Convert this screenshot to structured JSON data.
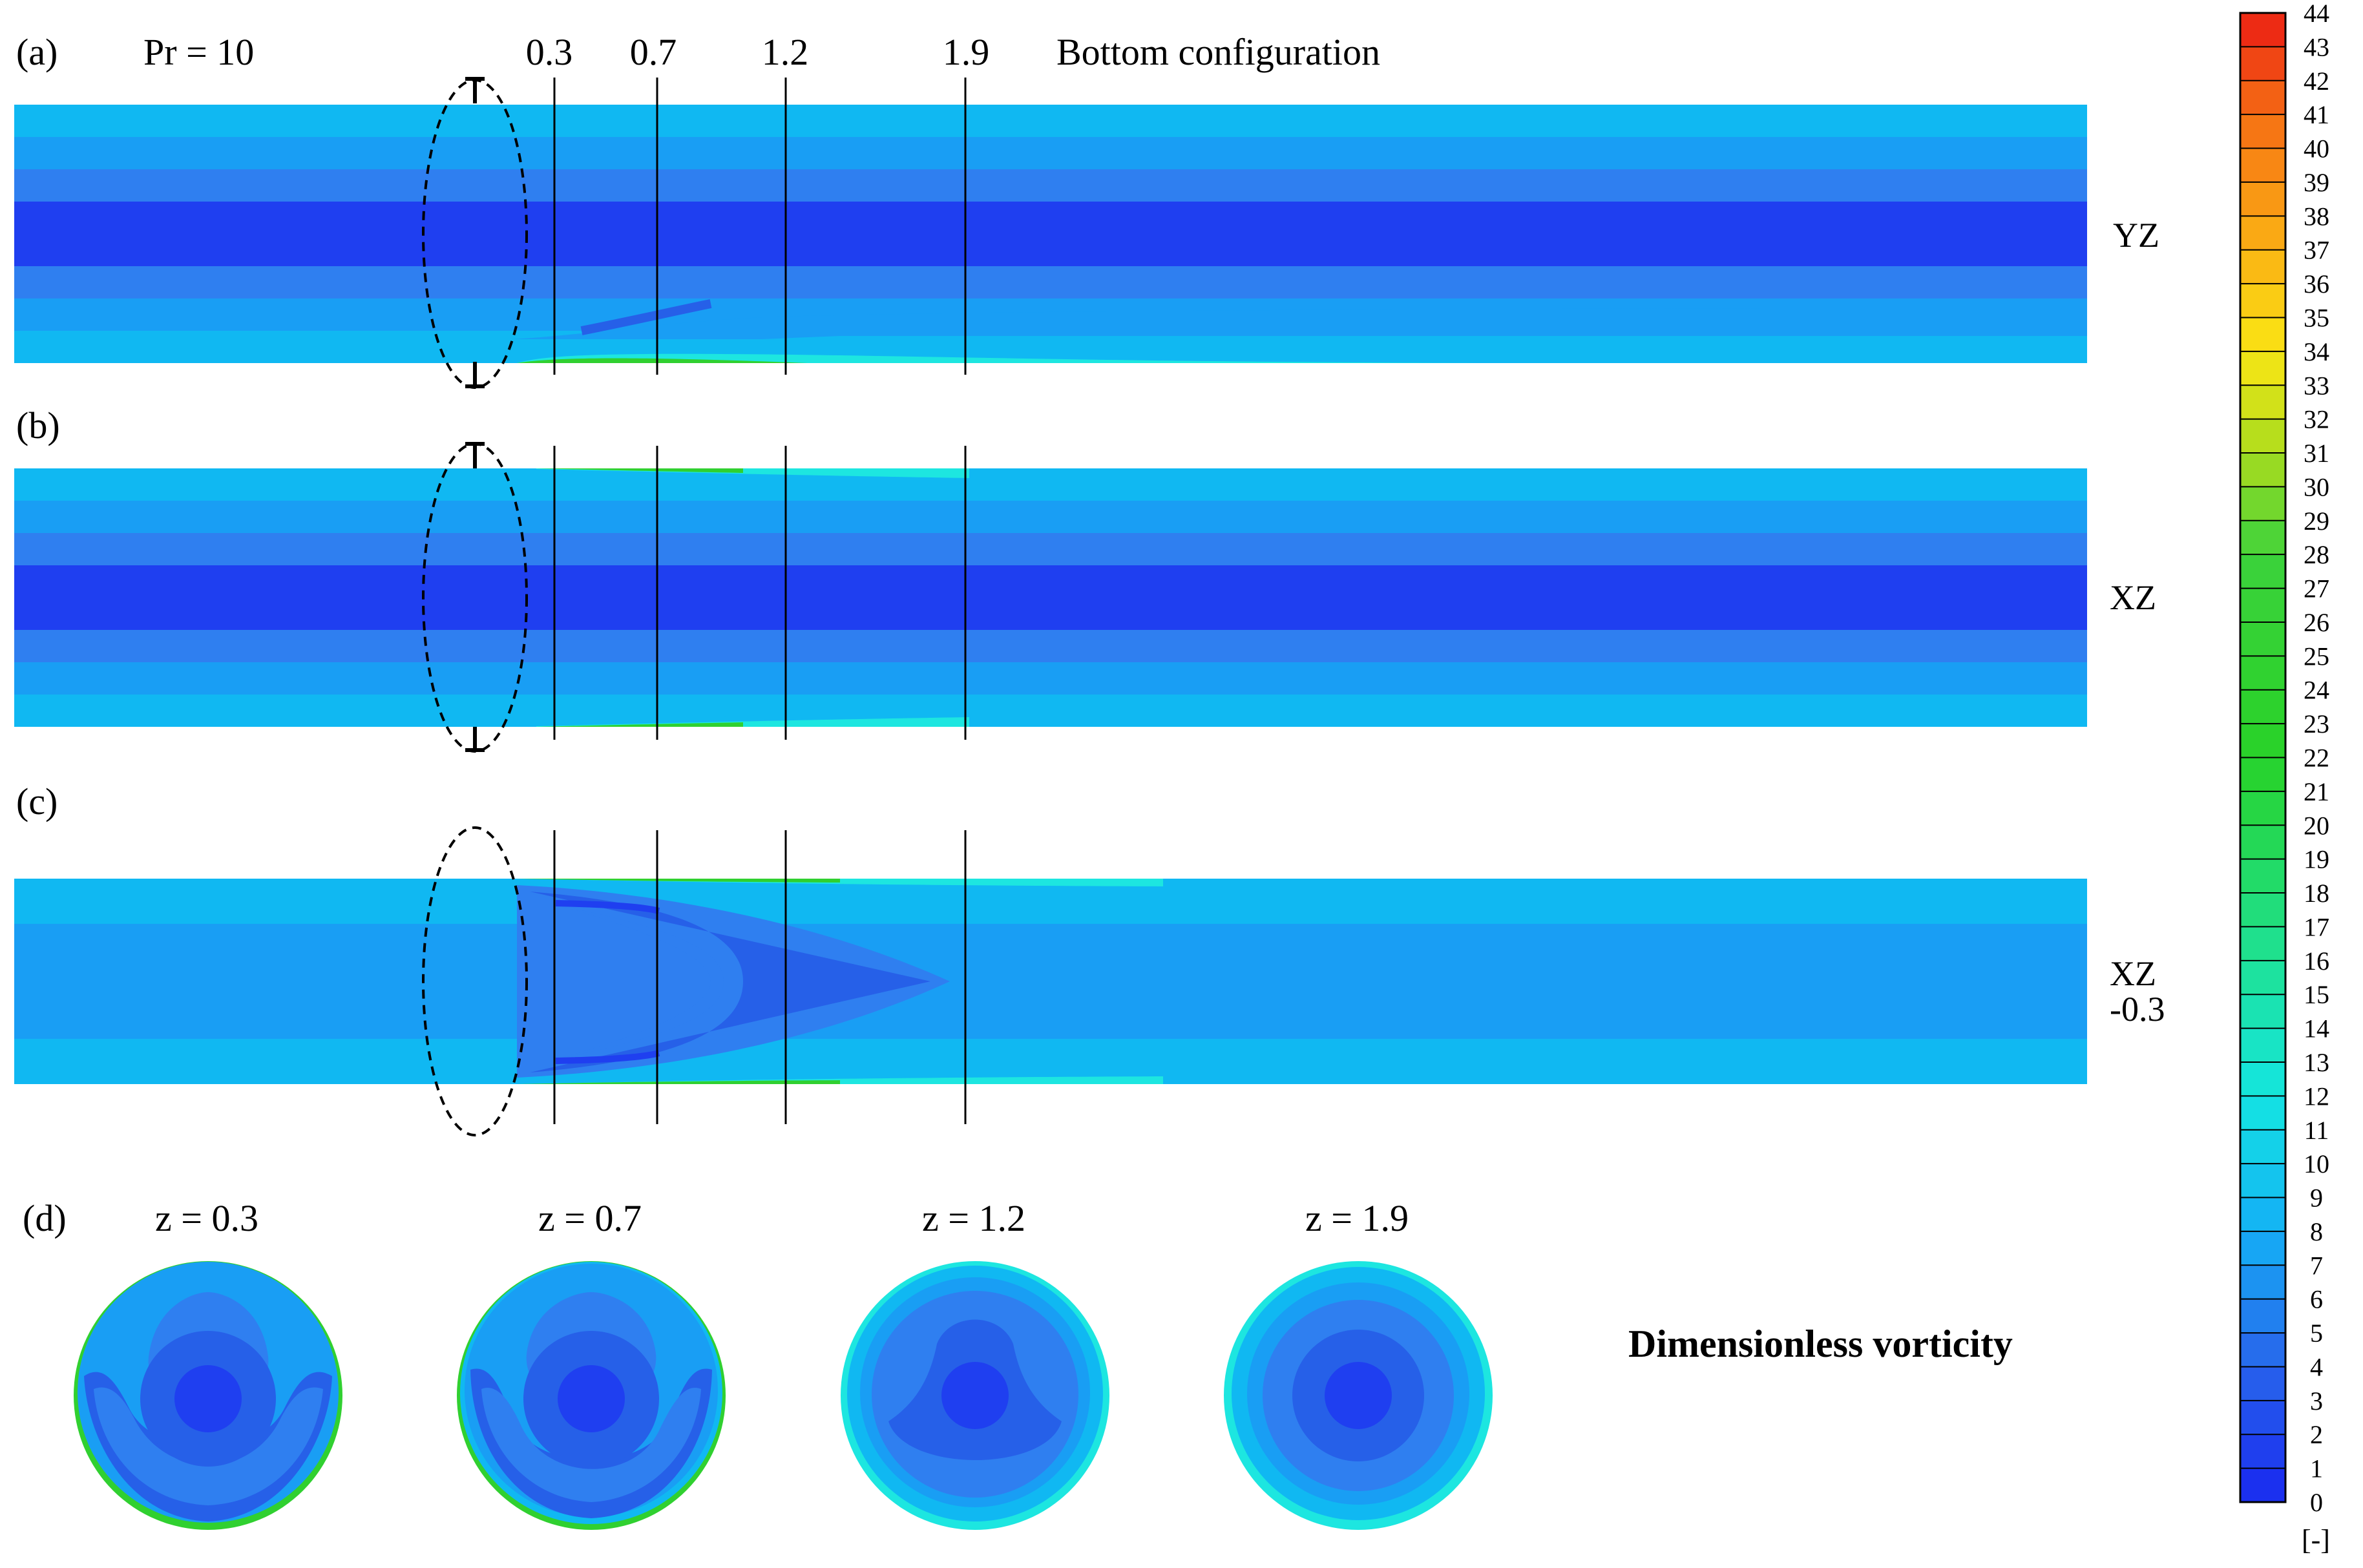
{
  "header": {
    "pr_label": "Pr = 10",
    "config_label": "Bottom configuration",
    "z_marks": [
      "0.3",
      "0.7",
      "1.2",
      "1.9"
    ]
  },
  "panels": [
    {
      "id": "a",
      "label": "(a)",
      "plane": "YZ",
      "plane2": ""
    },
    {
      "id": "b",
      "label": "(b)",
      "plane": "XZ",
      "plane2": ""
    },
    {
      "id": "c",
      "label": "(c)",
      "plane": "XZ",
      "plane2": "-0.3"
    }
  ],
  "cross_sections": {
    "label": "(d)",
    "items": [
      {
        "label": "z = 0.3"
      },
      {
        "label": "z = 0.7"
      },
      {
        "label": "z = 1.2"
      },
      {
        "label": "z = 1.9"
      }
    ]
  },
  "quantity_title": "Dimensionless vorticity",
  "colorbar": {
    "unit": "[-]",
    "min": 0,
    "max": 44,
    "ticks": [
      "0",
      "1",
      "2",
      "3",
      "4",
      "5",
      "6",
      "7",
      "8",
      "9",
      "10",
      "11",
      "12",
      "13",
      "14",
      "15",
      "16",
      "17",
      "18",
      "19",
      "20",
      "21",
      "22",
      "23",
      "24",
      "25",
      "26",
      "27",
      "28",
      "29",
      "30",
      "31",
      "32",
      "33",
      "34",
      "35",
      "36",
      "37",
      "38",
      "39",
      "40",
      "41",
      "42",
      "43",
      "44"
    ]
  },
  "colors": {
    "level_0_2": "#1f3ff0",
    "level_2_4": "#2660e8",
    "level_4_6": "#2f7ff0",
    "level_6_8": "#199ef4",
    "level_8_10": "#10b8f2",
    "level_10_14": "#1de6e0",
    "level_high": "#30d030",
    "line": "#000000"
  }
}
